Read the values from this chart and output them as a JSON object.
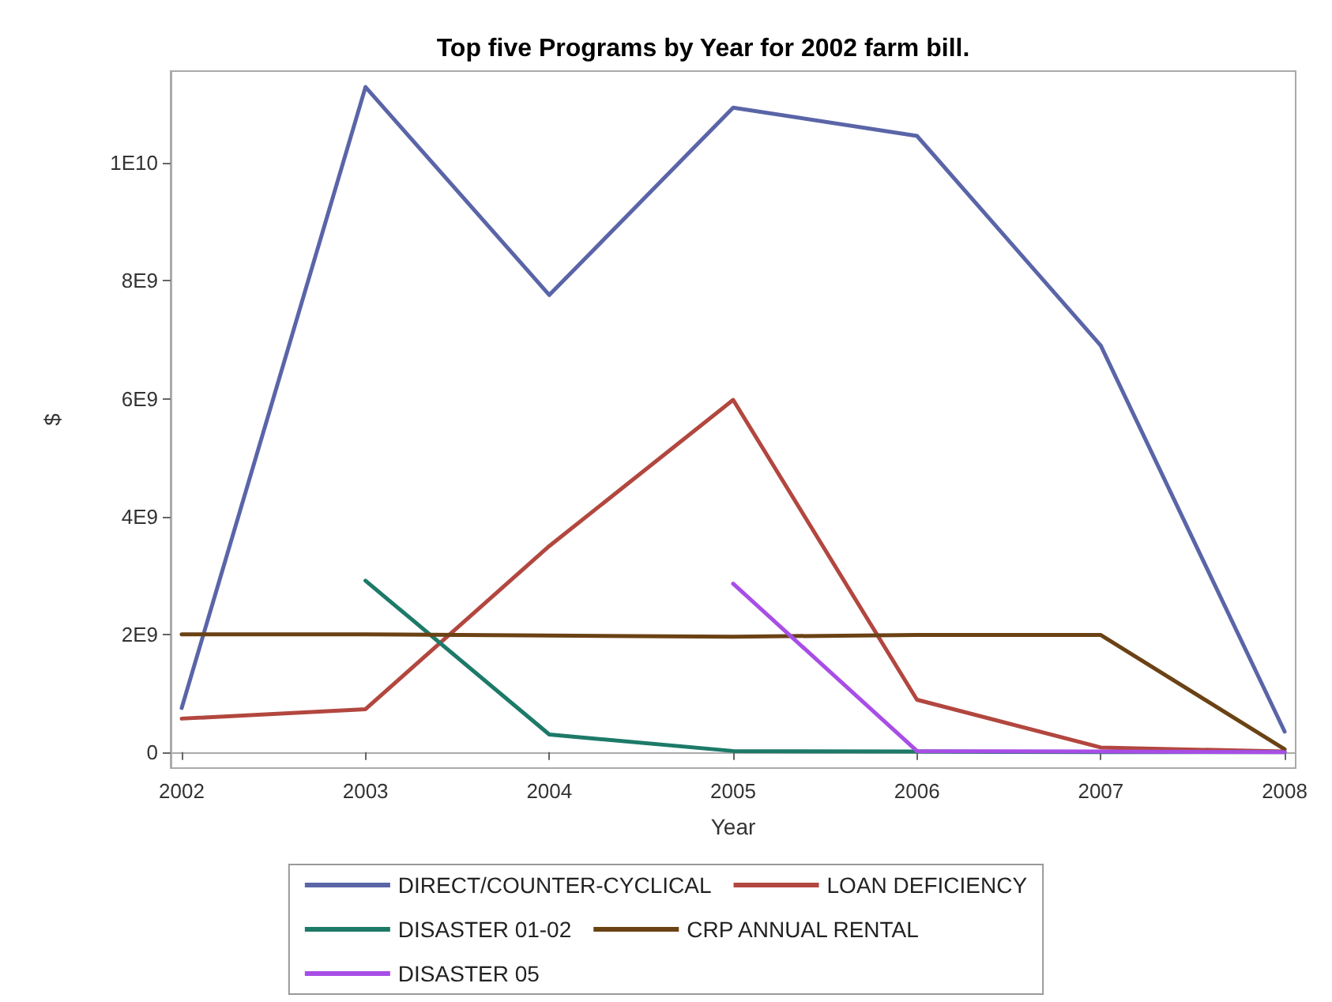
{
  "chart_data": {
    "type": "line",
    "title": "Top five Programs by Year for 2002 farm bill.",
    "xlabel": "Year",
    "ylabel": "$",
    "x": [
      2002,
      2003,
      2004,
      2005,
      2006,
      2007,
      2008
    ],
    "series": [
      {
        "name": "DIRECT/COUNTER-CYCLICAL",
        "color": "#5a65a8",
        "values": [
          750000000,
          11290000000,
          7760000000,
          10940000000,
          10460000000,
          6900000000,
          350000000
        ]
      },
      {
        "name": "LOAN DEFICIENCY",
        "color": "#b2473f",
        "values": [
          570000000,
          730000000,
          3500000000,
          5980000000,
          890000000,
          80000000,
          10000000
        ]
      },
      {
        "name": "DISASTER 01-02",
        "color": "#1d7a68",
        "values": [
          null,
          2910000000,
          300000000,
          20000000,
          10000000,
          0,
          0
        ]
      },
      {
        "name": "CRP ANNUAL RENTAL",
        "color": "#6b4214",
        "values": [
          2000000000,
          2000000000,
          1980000000,
          1960000000,
          1990000000,
          1990000000,
          50000000
        ]
      },
      {
        "name": "DISASTER 05",
        "color": "#a84ee6",
        "values": [
          null,
          null,
          null,
          2860000000,
          20000000,
          10000000,
          0
        ]
      }
    ],
    "xlim": [
      2001.94,
      2008.06
    ],
    "xticks": [
      2002,
      2003,
      2004,
      2005,
      2006,
      2007,
      2008
    ],
    "ylim": [
      -270000000,
      11560000000
    ],
    "yticks": [
      {
        "value": 0,
        "label": "0"
      },
      {
        "value": 2000000000,
        "label": "2E9"
      },
      {
        "value": 4000000000,
        "label": "4E9"
      },
      {
        "value": 6000000000,
        "label": "6E9"
      },
      {
        "value": 8000000000,
        "label": "8E9"
      },
      {
        "value": 10000000000,
        "label": "1E10"
      }
    ],
    "legend": "bottom",
    "marker": "none",
    "line_style": "solid"
  }
}
